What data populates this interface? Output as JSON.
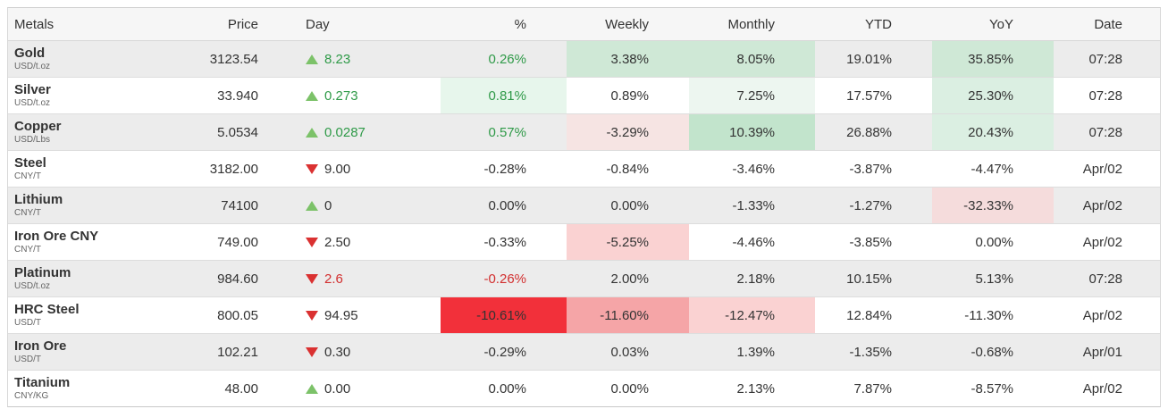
{
  "colors": {
    "up_triangle": "#7cc269",
    "down_triangle": "#da3131",
    "positive_text": "#2f9a48",
    "negative_text": "#d22f2f",
    "heat_green_strong": "#c2e4cc",
    "heat_green_light": "#e7f6ec",
    "heat_red_strong": "#f2303a",
    "heat_red_light": "#fad2d2",
    "alt_row_bg": "#ececec",
    "header_bg": "#f6f6f6"
  },
  "table": {
    "columns": [
      "Metals",
      "Price",
      "Day",
      "%",
      "Weekly",
      "Monthly",
      "YTD",
      "YoY",
      "Date"
    ],
    "rows": [
      {
        "name": "Gold",
        "unit": "USD/t.oz",
        "price": "3123.54",
        "day": {
          "dir": "up",
          "value": "8.23",
          "tone": "green"
        },
        "cells": {
          "pct": {
            "t": "0.26%",
            "tone": "green"
          },
          "weekly": {
            "t": "3.38%",
            "heat": "g2"
          },
          "monthly": {
            "t": "8.05%",
            "heat": "g2"
          },
          "ytd": {
            "t": "19.01%"
          },
          "yoy": {
            "t": "35.85%",
            "heat": "g2"
          }
        },
        "date": "07:28"
      },
      {
        "name": "Silver",
        "unit": "USD/t.oz",
        "price": "33.940",
        "day": {
          "dir": "up",
          "value": "0.273",
          "tone": "green"
        },
        "cells": {
          "pct": {
            "t": "0.81%",
            "tone": "green",
            "heat": "g1"
          },
          "weekly": {
            "t": "0.89%"
          },
          "monthly": {
            "t": "7.25%",
            "heat": "g05"
          },
          "ytd": {
            "t": "17.57%"
          },
          "yoy": {
            "t": "25.30%",
            "heat": "g15"
          }
        },
        "date": "07:28"
      },
      {
        "name": "Copper",
        "unit": "USD/Lbs",
        "price": "5.0534",
        "day": {
          "dir": "up",
          "value": "0.0287",
          "tone": "green"
        },
        "cells": {
          "pct": {
            "t": "0.57%",
            "tone": "green"
          },
          "weekly": {
            "t": "-3.29%",
            "heat": "r05"
          },
          "monthly": {
            "t": "10.39%",
            "heat": "g25"
          },
          "ytd": {
            "t": "26.88%"
          },
          "yoy": {
            "t": "20.43%",
            "heat": "g15"
          }
        },
        "date": "07:28"
      },
      {
        "name": "Steel",
        "unit": "CNY/T",
        "price": "3182.00",
        "day": {
          "dir": "down",
          "value": "9.00",
          "tone": "plain"
        },
        "cells": {
          "pct": {
            "t": "-0.28%"
          },
          "weekly": {
            "t": "-0.84%"
          },
          "monthly": {
            "t": "-3.46%"
          },
          "ytd": {
            "t": "-3.87%"
          },
          "yoy": {
            "t": "-4.47%"
          }
        },
        "date": "Apr/02"
      },
      {
        "name": "Lithium",
        "unit": "CNY/T",
        "price": "74100",
        "day": {
          "dir": "up",
          "value": "0",
          "tone": "plain"
        },
        "cells": {
          "pct": {
            "t": "0.00%"
          },
          "weekly": {
            "t": "0.00%"
          },
          "monthly": {
            "t": "-1.33%"
          },
          "ytd": {
            "t": "-1.27%"
          },
          "yoy": {
            "t": "-32.33%",
            "heat": "r1"
          }
        },
        "date": "Apr/02"
      },
      {
        "name": "Iron Ore CNY",
        "unit": "CNY/T",
        "price": "749.00",
        "day": {
          "dir": "down",
          "value": "2.50",
          "tone": "plain"
        },
        "cells": {
          "pct": {
            "t": "-0.33%"
          },
          "weekly": {
            "t": "-5.25%",
            "heat": "r2"
          },
          "monthly": {
            "t": "-4.46%"
          },
          "ytd": {
            "t": "-3.85%"
          },
          "yoy": {
            "t": "0.00%"
          }
        },
        "date": "Apr/02"
      },
      {
        "name": "Platinum",
        "unit": "USD/t.oz",
        "price": "984.60",
        "day": {
          "dir": "down",
          "value": "2.6",
          "tone": "red"
        },
        "cells": {
          "pct": {
            "t": "-0.26%",
            "tone": "red"
          },
          "weekly": {
            "t": "2.00%"
          },
          "monthly": {
            "t": "2.18%"
          },
          "ytd": {
            "t": "10.15%"
          },
          "yoy": {
            "t": "5.13%"
          }
        },
        "date": "07:28"
      },
      {
        "name": "HRC Steel",
        "unit": "USD/T",
        "price": "800.05",
        "day": {
          "dir": "down",
          "value": "94.95",
          "tone": "plain"
        },
        "cells": {
          "pct": {
            "t": "-10.61%",
            "heat": "r4"
          },
          "weekly": {
            "t": "-11.60%",
            "heat": "r3"
          },
          "monthly": {
            "t": "-12.47%",
            "heat": "r2"
          },
          "ytd": {
            "t": "12.84%"
          },
          "yoy": {
            "t": "-11.30%"
          }
        },
        "date": "Apr/02"
      },
      {
        "name": "Iron Ore",
        "unit": "USD/T",
        "price": "102.21",
        "day": {
          "dir": "down",
          "value": "0.30",
          "tone": "plain"
        },
        "cells": {
          "pct": {
            "t": "-0.29%"
          },
          "weekly": {
            "t": "0.03%"
          },
          "monthly": {
            "t": "1.39%"
          },
          "ytd": {
            "t": "-1.35%"
          },
          "yoy": {
            "t": "-0.68%"
          }
        },
        "date": "Apr/01"
      },
      {
        "name": "Titanium",
        "unit": "CNY/KG",
        "price": "48.00",
        "day": {
          "dir": "up",
          "value": "0.00",
          "tone": "plain"
        },
        "cells": {
          "pct": {
            "t": "0.00%"
          },
          "weekly": {
            "t": "0.00%"
          },
          "monthly": {
            "t": "2.13%"
          },
          "ytd": {
            "t": "7.87%"
          },
          "yoy": {
            "t": "-8.57%"
          }
        },
        "date": "Apr/02"
      }
    ]
  }
}
